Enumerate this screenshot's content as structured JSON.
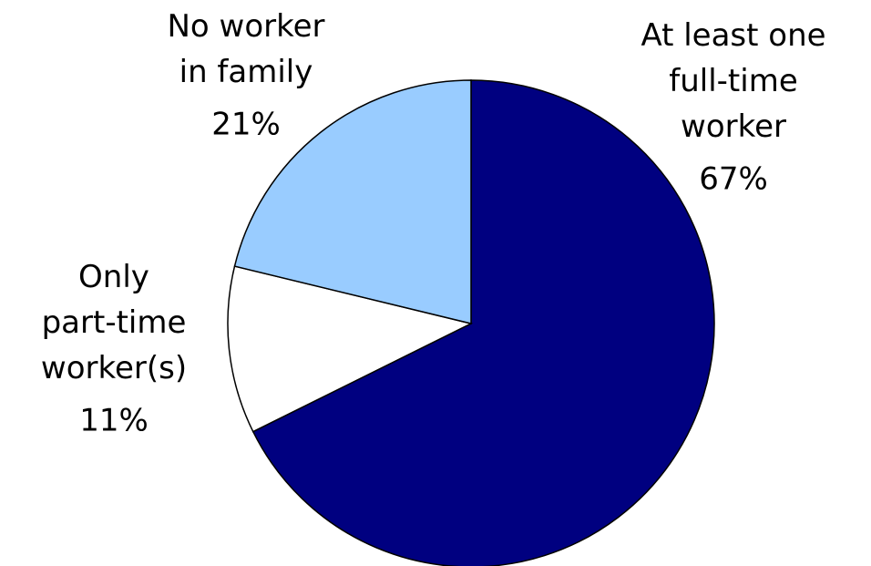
{
  "chart_data": {
    "type": "pie",
    "categories": [
      "At least one\nfull-time\nworker",
      "Only\npart-time\nworker(s)",
      "No worker\nin family"
    ],
    "values": [
      67,
      11,
      21
    ],
    "value_labels": [
      "67%",
      "11%",
      "21%"
    ],
    "colors": [
      "#000080",
      "#ffffff",
      "#99ccff"
    ]
  }
}
